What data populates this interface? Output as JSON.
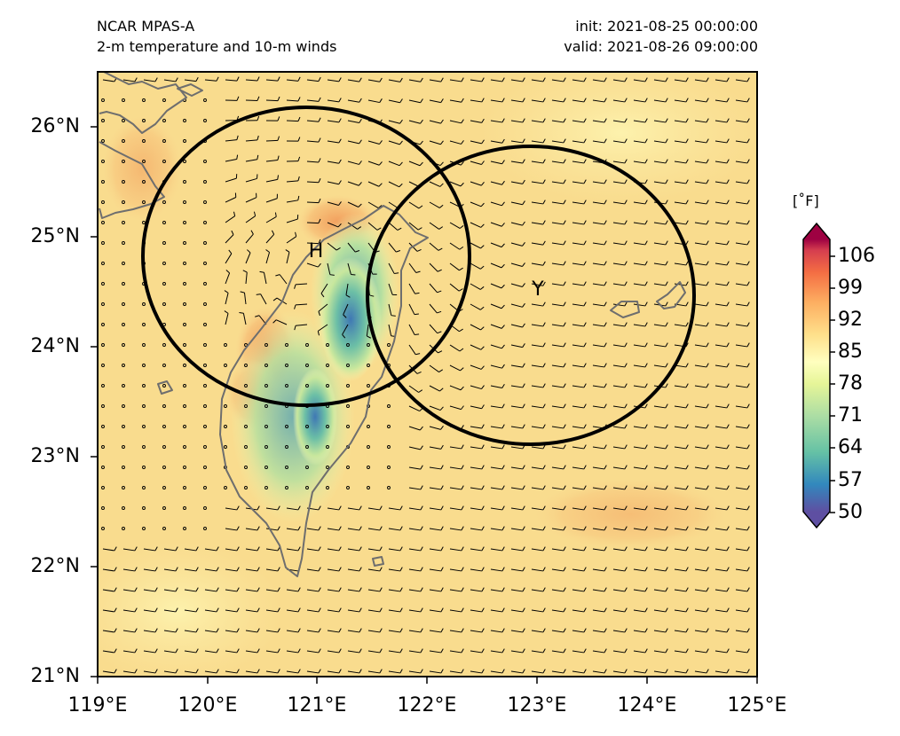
{
  "header": {
    "model": "NCAR MPAS-A",
    "description": "2-m temperature and 10-m winds",
    "init": "init: 2021-08-25 00:00:00",
    "valid": "valid: 2021-08-26 09:00:00"
  },
  "map": {
    "lon_range": [
      119,
      125
    ],
    "lat_range": [
      21,
      26.5
    ],
    "lat_ticks": [
      "21°N",
      "22°N",
      "23°N",
      "24°N",
      "25°N",
      "26°N"
    ],
    "lon_ticks": [
      "119°E",
      "120°E",
      "121°E",
      "122°E",
      "123°E",
      "124°E",
      "125°E"
    ],
    "colorbar": {
      "unit": "[˚F]",
      "ticks": [
        "50",
        "57",
        "64",
        "71",
        "78",
        "85",
        "92",
        "99",
        "106"
      ],
      "colormap": "Spectral_r",
      "extend": "both"
    },
    "circles": [
      {
        "label": "H",
        "center_lon": 121.0,
        "center_lat": 24.82,
        "radius_deg_lat": 1.35
      },
      {
        "label": "Y",
        "center_lon": 122.95,
        "center_lat": 24.45,
        "radius_deg_lat": 1.35
      }
    ],
    "coastline_color": "#6e6e6e",
    "circle_color": "#000000",
    "background_color": "#f9de92"
  }
}
